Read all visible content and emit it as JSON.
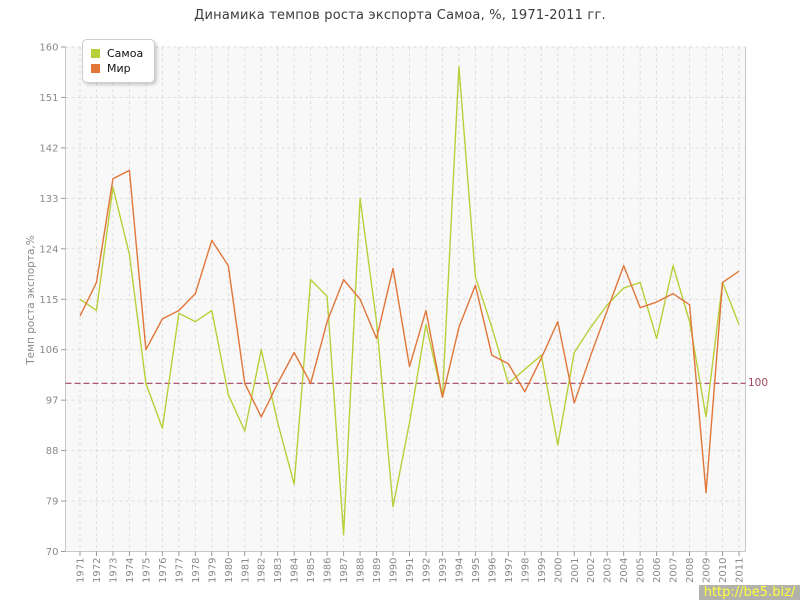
{
  "title": "Динамика темпов роста экспорта Самоа, %, 1971-2011 гг.",
  "watermark": "http://be5.biz/",
  "colors": {
    "samoa": "#b9cf3a",
    "world": "#e0763a",
    "guide": "#a0455a",
    "grid": "#dddddd",
    "axis_border": "#c8c8c8",
    "tick": "#999999",
    "tick_label": "#8a8a8a",
    "plot_background": "#f8f8f8"
  },
  "chart_data": {
    "type": "line",
    "title": "Динамика темпов роста экспорта Самоа, %, 1971-2011 гг.",
    "xlabel": "",
    "ylabel": "Темп роста экспорта,%",
    "ylim": [
      70,
      160
    ],
    "yticks": [
      70,
      79,
      88,
      97,
      106,
      115,
      124,
      133,
      142,
      151,
      160
    ],
    "grid": true,
    "legend_position": "top-left",
    "guide_line": {
      "value": 100,
      "label": "100",
      "color": "#a0455a"
    },
    "x": [
      1971,
      1972,
      1973,
      1974,
      1975,
      1976,
      1977,
      1978,
      1979,
      1980,
      1981,
      1982,
      1983,
      1984,
      1985,
      1986,
      1987,
      1988,
      1989,
      1990,
      1991,
      1992,
      1993,
      1994,
      1995,
      1996,
      1997,
      1998,
      1999,
      2000,
      2001,
      2002,
      2003,
      2004,
      2005,
      2006,
      2007,
      2008,
      2009,
      2010,
      2011
    ],
    "series": [
      {
        "name": "Самоа",
        "color": "#b9cf3a",
        "values": [
          115,
          113,
          135,
          123,
          100,
          92,
          112.5,
          111,
          113,
          98,
          91.5,
          106,
          93,
          82,
          118.5,
          115.5,
          73,
          133,
          111,
          78,
          93,
          110.5,
          97.5,
          156.5,
          119,
          110,
          100,
          102.5,
          105,
          89,
          105.5,
          110,
          114,
          117,
          118,
          108,
          121,
          111,
          94,
          118,
          110.5
        ]
      },
      {
        "name": "Мир",
        "color": "#e0763a",
        "values": [
          112,
          118,
          136.5,
          138,
          106,
          111.5,
          113,
          116,
          125.5,
          121,
          100,
          94,
          100,
          105.5,
          100,
          111,
          118.5,
          115,
          108,
          120.5,
          103,
          113,
          97.5,
          110,
          117.5,
          105,
          103.5,
          98.5,
          104.5,
          111,
          96.5,
          105,
          113,
          121,
          113.5,
          114.5,
          116,
          114,
          80.5,
          118,
          120
        ]
      }
    ]
  }
}
